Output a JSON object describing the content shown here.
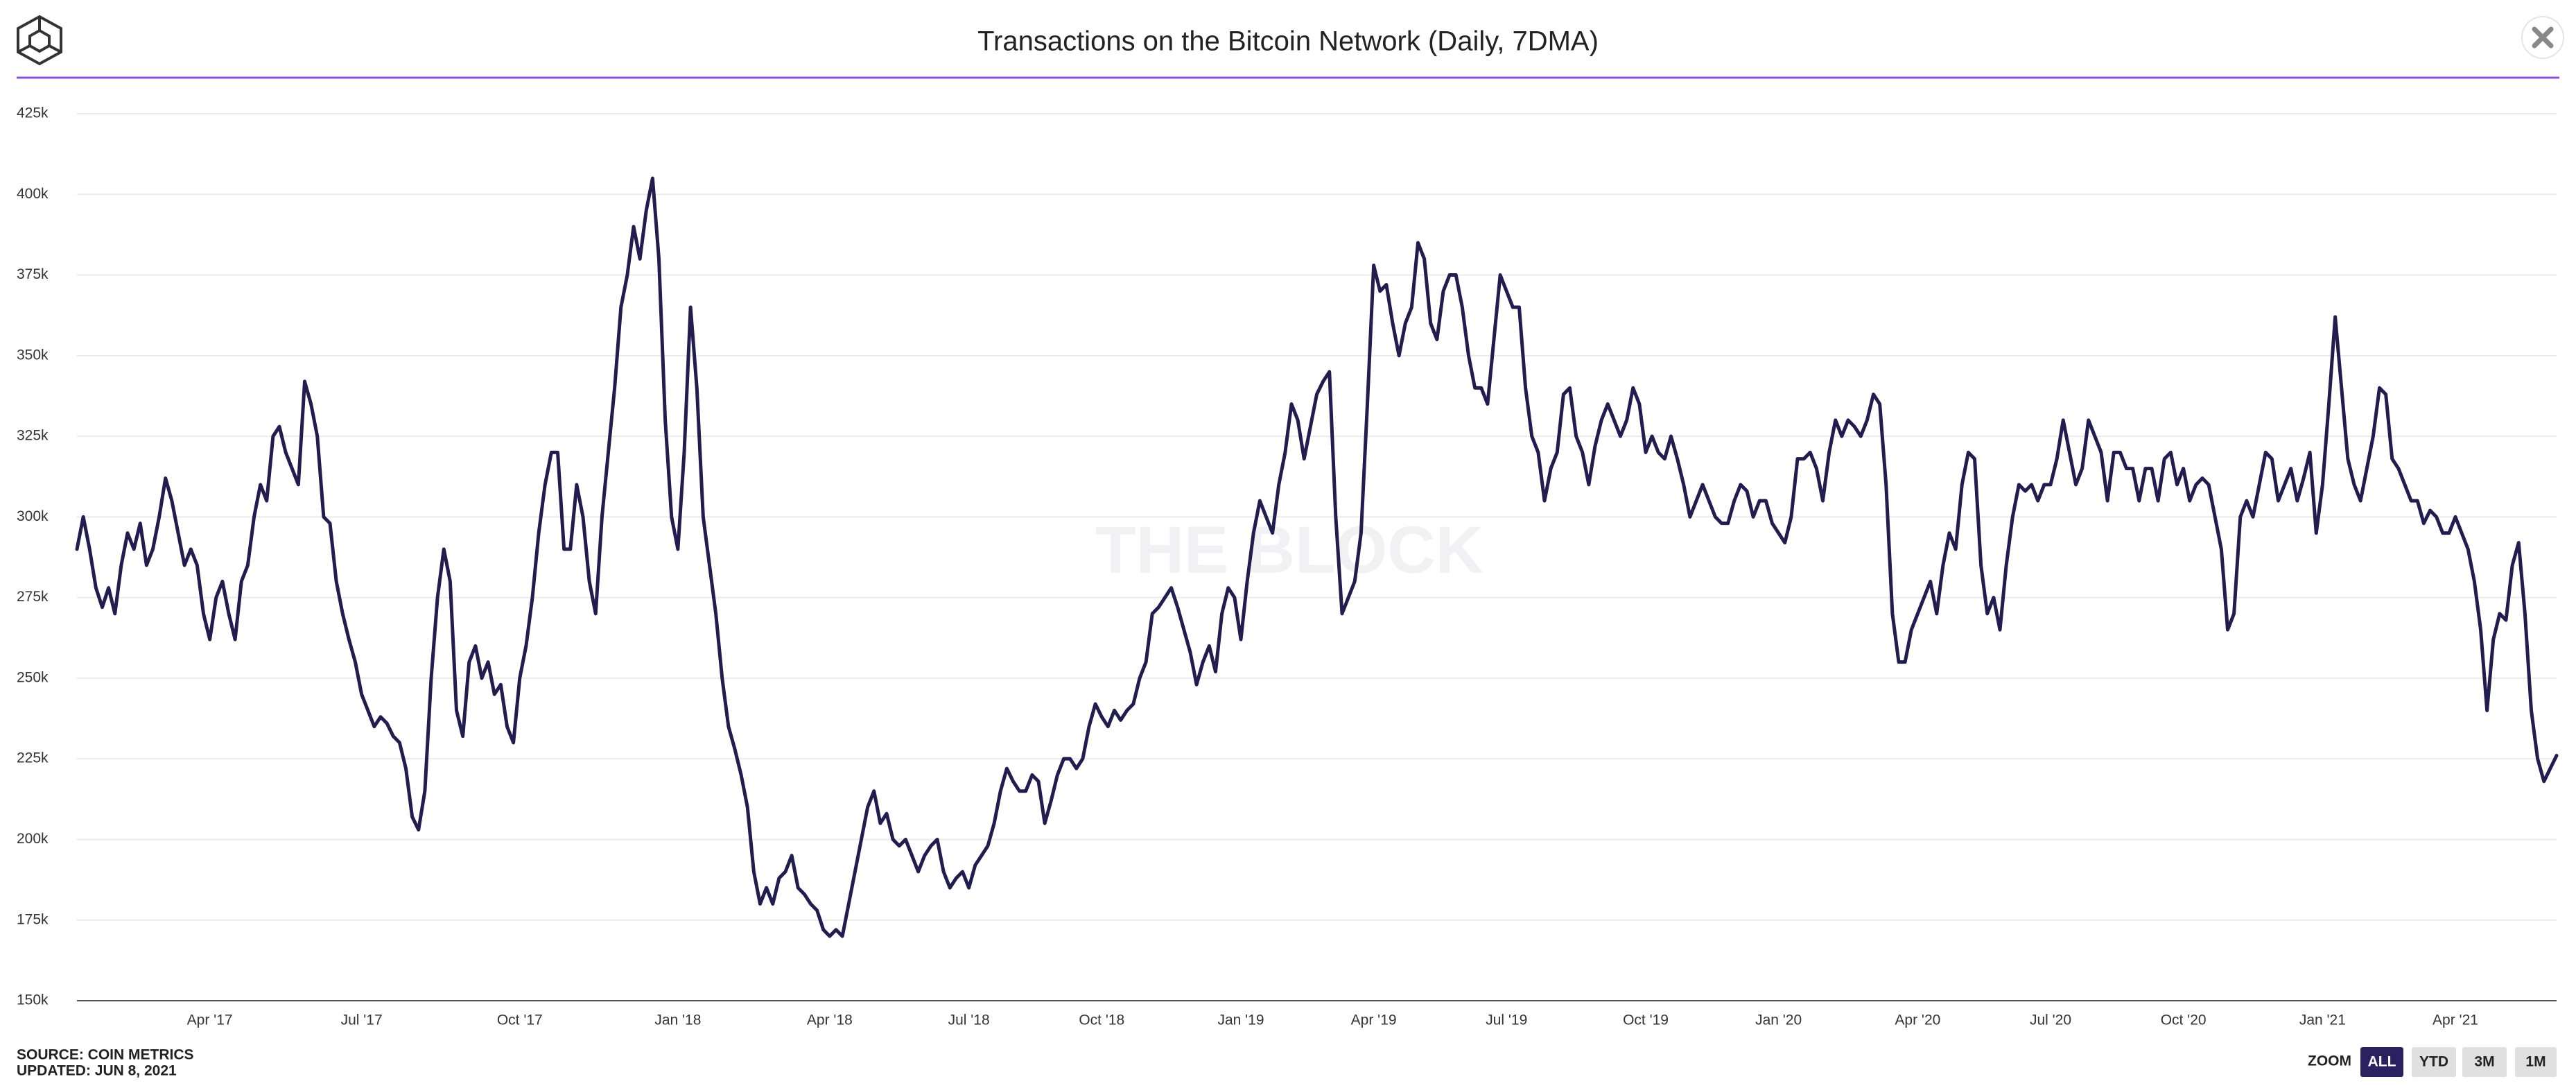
{
  "chart_data": {
    "type": "line",
    "title": "Transactions on the Bitcoin Network (Daily, 7DMA)",
    "watermark": "THE BLOCK",
    "source": "SOURCE: COIN METRICS",
    "updated": "UPDATED: JUN 8, 2021",
    "zoom": {
      "label": "ZOOM",
      "options": [
        "ALL",
        "YTD",
        "3M",
        "1M"
      ],
      "active": 0
    },
    "color": "#221c4f",
    "grid": true,
    "ylim": [
      150000,
      425000
    ],
    "yticks": [
      {
        "value": 150000,
        "label": "150k"
      },
      {
        "value": 175000,
        "label": "175k"
      },
      {
        "value": 200000,
        "label": "200k"
      },
      {
        "value": 225000,
        "label": "225k"
      },
      {
        "value": 250000,
        "label": "250k"
      },
      {
        "value": 275000,
        "label": "275k"
      },
      {
        "value": 300000,
        "label": "300k"
      },
      {
        "value": 325000,
        "label": "325k"
      },
      {
        "value": 350000,
        "label": "350k"
      },
      {
        "value": 375000,
        "label": "375k"
      },
      {
        "value": 400000,
        "label": "400k"
      },
      {
        "value": 425000,
        "label": "425k"
      }
    ],
    "categories": [
      null,
      null,
      null,
      null,
      null,
      null,
      null,
      null,
      null,
      null,
      null,
      null,
      null,
      null,
      null,
      null,
      null,
      null,
      null,
      null,
      null,
      "Apr '17",
      null,
      null,
      null,
      null,
      null,
      null,
      null,
      null,
      null,
      null,
      null,
      null,
      null,
      null,
      null,
      null,
      null,
      null,
      null,
      null,
      null,
      null,
      null,
      "Jul '17",
      null,
      null,
      null,
      null,
      null,
      null,
      null,
      null,
      null,
      null,
      null,
      null,
      null,
      null,
      null,
      null,
      null,
      null,
      null,
      null,
      null,
      null,
      null,
      null,
      "Oct '17",
      null,
      null,
      null,
      null,
      null,
      null,
      null,
      null,
      null,
      null,
      null,
      null,
      null,
      null,
      null,
      null,
      null,
      null,
      null,
      null,
      null,
      null,
      null,
      null,
      "Jan '18",
      null,
      null,
      null,
      null,
      null,
      null,
      null,
      null,
      null,
      null,
      null,
      null,
      null,
      null,
      null,
      null,
      null,
      null,
      null,
      null,
      null,
      null,
      null,
      "Apr '18",
      null,
      null,
      null,
      null,
      null,
      null,
      null,
      null,
      null,
      null,
      null,
      null,
      null,
      null,
      null,
      null,
      null,
      null,
      null,
      null,
      null,
      "Jul '18",
      null,
      null,
      null,
      null,
      null,
      null,
      null,
      null,
      null,
      null,
      null,
      null,
      null,
      null,
      null,
      null,
      null,
      null,
      null,
      null,
      "Oct '18",
      null,
      null,
      null,
      null,
      null,
      null,
      null,
      null,
      null,
      null,
      null,
      null,
      null,
      null,
      null,
      null,
      null,
      null,
      null,
      null,
      null,
      "Jan '19",
      null,
      null,
      null,
      null,
      null,
      null,
      null,
      null,
      null,
      null,
      null,
      null,
      null,
      null,
      null,
      null,
      null,
      null,
      null,
      null,
      "Apr '19",
      null,
      null,
      null,
      null,
      null,
      null,
      null,
      null,
      null,
      null,
      null,
      null,
      null,
      null,
      null,
      null,
      null,
      null,
      null,
      null,
      "Jul '19",
      null,
      null,
      null,
      null,
      null,
      null,
      null,
      null,
      null,
      null,
      null,
      null,
      null,
      null,
      null,
      null,
      null,
      null,
      null,
      null,
      null,
      "Oct '19",
      null,
      null,
      null,
      null,
      null,
      null,
      null,
      null,
      null,
      null,
      null,
      null,
      null,
      null,
      null,
      null,
      null,
      null,
      null,
      null,
      "Jan '20",
      null,
      null,
      null,
      null,
      null,
      null,
      null,
      null,
      null,
      null,
      null,
      null,
      null,
      null,
      null,
      null,
      null,
      null,
      null,
      null,
      null,
      "Apr '20",
      null,
      null,
      null,
      null,
      null,
      null,
      null,
      null,
      null,
      null,
      null,
      null,
      null,
      null,
      null,
      null,
      null,
      null,
      null,
      null,
      "Jul '20",
      null,
      null,
      null,
      null,
      null,
      null,
      null,
      null,
      null,
      null,
      null,
      null,
      null,
      null,
      null,
      null,
      null,
      null,
      null,
      null,
      "Oct '20",
      null,
      null,
      null,
      null,
      null,
      null,
      null,
      null,
      null,
      null,
      null,
      null,
      null,
      null,
      null,
      null,
      null,
      null,
      null,
      null,
      null,
      "Jan '21",
      null,
      null,
      null,
      null,
      null,
      null,
      null,
      null,
      null,
      null,
      null,
      null,
      null,
      null,
      null,
      null,
      null,
      null,
      null,
      null,
      "Apr '21",
      null,
      null,
      null,
      null,
      null,
      null,
      null,
      null,
      null,
      null,
      null,
      null,
      null,
      null,
      null,
      null
    ],
    "values": [
      290000,
      300000,
      290000,
      278000,
      272000,
      278000,
      270000,
      285000,
      295000,
      290000,
      298000,
      285000,
      290000,
      300000,
      312000,
      305000,
      295000,
      285000,
      290000,
      285000,
      270000,
      262000,
      275000,
      280000,
      270000,
      262000,
      280000,
      285000,
      300000,
      310000,
      305000,
      325000,
      328000,
      320000,
      315000,
      310000,
      342000,
      335000,
      325000,
      300000,
      298000,
      280000,
      270000,
      262000,
      255000,
      245000,
      240000,
      235000,
      238000,
      236000,
      232000,
      230000,
      222000,
      207000,
      203000,
      215000,
      250000,
      275000,
      290000,
      280000,
      240000,
      232000,
      255000,
      260000,
      250000,
      255000,
      245000,
      248000,
      235000,
      230000,
      250000,
      260000,
      275000,
      295000,
      310000,
      320000,
      320000,
      290000,
      290000,
      310000,
      300000,
      280000,
      270000,
      300000,
      320000,
      340000,
      365000,
      375000,
      390000,
      380000,
      395000,
      405000,
      380000,
      330000,
      300000,
      290000,
      320000,
      365000,
      340000,
      300000,
      285000,
      270000,
      250000,
      235000,
      228000,
      220000,
      210000,
      190000,
      180000,
      185000,
      180000,
      188000,
      190000,
      195000,
      185000,
      183000,
      180000,
      178000,
      172000,
      170000,
      172000,
      170000,
      180000,
      190000,
      200000,
      210000,
      215000,
      205000,
      208000,
      200000,
      198000,
      200000,
      195000,
      190000,
      195000,
      198000,
      200000,
      190000,
      185000,
      188000,
      190000,
      185000,
      192000,
      195000,
      198000,
      205000,
      215000,
      222000,
      218000,
      215000,
      215000,
      220000,
      218000,
      205000,
      212000,
      220000,
      225000,
      225000,
      222000,
      225000,
      235000,
      242000,
      238000,
      235000,
      240000,
      237000,
      240000,
      242000,
      250000,
      255000,
      270000,
      272000,
      275000,
      278000,
      272000,
      265000,
      258000,
      248000,
      255000,
      260000,
      252000,
      270000,
      278000,
      275000,
      262000,
      280000,
      295000,
      305000,
      300000,
      295000,
      310000,
      320000,
      335000,
      330000,
      318000,
      328000,
      338000,
      342000,
      345000,
      300000,
      270000,
      275000,
      280000,
      295000,
      335000,
      378000,
      370000,
      372000,
      360000,
      350000,
      360000,
      365000,
      385000,
      380000,
      360000,
      355000,
      370000,
      375000,
      375000,
      365000,
      350000,
      340000,
      340000,
      335000,
      355000,
      375000,
      370000,
      365000,
      365000,
      340000,
      325000,
      320000,
      305000,
      315000,
      320000,
      338000,
      340000,
      325000,
      320000,
      310000,
      322000,
      330000,
      335000,
      330000,
      325000,
      330000,
      340000,
      335000,
      320000,
      325000,
      320000,
      318000,
      325000,
      318000,
      310000,
      300000,
      305000,
      310000,
      305000,
      300000,
      298000,
      298000,
      305000,
      310000,
      308000,
      300000,
      305000,
      305000,
      298000,
      295000,
      292000,
      300000,
      318000,
      318000,
      320000,
      315000,
      305000,
      320000,
      330000,
      325000,
      330000,
      328000,
      325000,
      330000,
      338000,
      335000,
      310000,
      270000,
      255000,
      255000,
      265000,
      270000,
      275000,
      280000,
      270000,
      285000,
      295000,
      290000,
      310000,
      320000,
      318000,
      285000,
      270000,
      275000,
      265000,
      285000,
      300000,
      310000,
      308000,
      310000,
      305000,
      310000,
      310000,
      318000,
      330000,
      320000,
      310000,
      315000,
      330000,
      325000,
      320000,
      305000,
      320000,
      320000,
      315000,
      315000,
      305000,
      315000,
      315000,
      305000,
      318000,
      320000,
      310000,
      315000,
      305000,
      310000,
      312000,
      310000,
      300000,
      290000,
      265000,
      270000,
      300000,
      305000,
      300000,
      310000,
      320000,
      318000,
      305000,
      310000,
      315000,
      305000,
      312000,
      320000,
      295000,
      310000,
      335000,
      362000,
      340000,
      318000,
      310000,
      305000,
      315000,
      325000,
      340000,
      338000,
      318000,
      315000,
      310000,
      305000,
      305000,
      298000,
      302000,
      300000,
      295000,
      295000,
      300000,
      295000,
      290000,
      280000,
      265000,
      240000,
      262000,
      270000,
      268000,
      285000,
      292000,
      270000,
      240000,
      225000,
      218000,
      222000,
      226000
    ]
  }
}
